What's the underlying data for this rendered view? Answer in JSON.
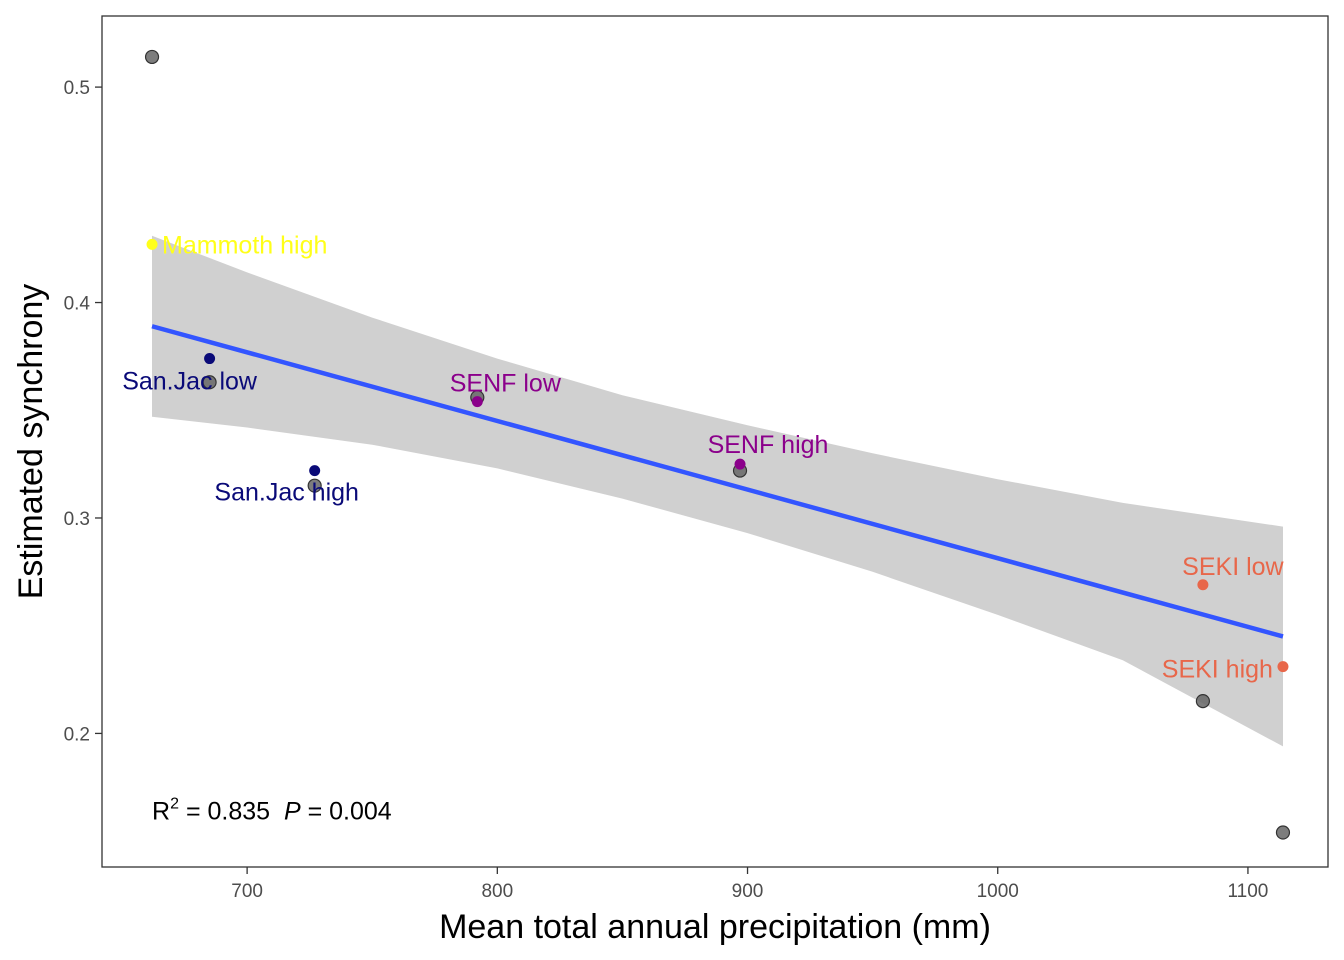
{
  "chart_data": {
    "type": "scatter",
    "title": "",
    "xlabel": "Mean total annual precipitation (mm)",
    "ylabel": "Estimated synchrony",
    "xlim": [
      642,
      1132
    ],
    "ylim": [
      0.138,
      0.533
    ],
    "x_ticks": [
      700,
      800,
      900,
      1000,
      1100
    ],
    "y_ticks": [
      0.2,
      0.3,
      0.4,
      0.5
    ],
    "x_tick_labels": [
      "700",
      "800",
      "900",
      "1000",
      "1100"
    ],
    "y_tick_labels": [
      "0.2",
      "0.3",
      "0.4",
      "0.5"
    ],
    "grid": false,
    "legend": "none",
    "gray_points": [
      {
        "x": 662,
        "y": 0.514
      },
      {
        "x": 685,
        "y": 0.363
      },
      {
        "x": 727,
        "y": 0.315
      },
      {
        "x": 792,
        "y": 0.356
      },
      {
        "x": 897,
        "y": 0.322
      },
      {
        "x": 1082,
        "y": 0.215
      },
      {
        "x": 1114,
        "y": 0.154
      }
    ],
    "labeled_points": [
      {
        "label": "Mammoth high",
        "x": 662,
        "y": 0.427,
        "color": "#ffff19",
        "anchor": "start"
      },
      {
        "label": "San.Jac low",
        "x": 685,
        "y": 0.374,
        "color": "#0a0a78",
        "anchor": "middle"
      },
      {
        "label": "San.Jac high",
        "x": 727,
        "y": 0.322,
        "color": "#0a0a78",
        "anchor": "middle"
      },
      {
        "label": "SENF low",
        "x": 792,
        "y": 0.354,
        "color": "#8b008b",
        "anchor": "middle"
      },
      {
        "label": "SENF high",
        "x": 897,
        "y": 0.325,
        "color": "#8b008b",
        "anchor": "middle"
      },
      {
        "label": "SEKI low",
        "x": 1082,
        "y": 0.269,
        "color": "#e8674a",
        "anchor": "middle"
      },
      {
        "label": "SEKI high",
        "x": 1114,
        "y": 0.231,
        "color": "#e8674a",
        "anchor": "end"
      }
    ],
    "fit_line": {
      "x": [
        662,
        1114
      ],
      "y": [
        0.389,
        0.245
      ],
      "color": "#3355ff"
    },
    "confidence_band": {
      "x": [
        662,
        700,
        750,
        800,
        850,
        900,
        950,
        1000,
        1050,
        1114
      ],
      "upper": [
        0.431,
        0.414,
        0.393,
        0.374,
        0.357,
        0.343,
        0.33,
        0.318,
        0.307,
        0.296
      ],
      "lower": [
        0.347,
        0.342,
        0.334,
        0.323,
        0.309,
        0.293,
        0.275,
        0.255,
        0.234,
        0.194
      ],
      "color": "#d0d0d0"
    },
    "annotation": {
      "r_label": "R",
      "r_sup": "2",
      "r_value": " = 0.835  ",
      "p_label": "P",
      "p_value": " = 0.004",
      "x": 662,
      "y": 0.162
    }
  }
}
